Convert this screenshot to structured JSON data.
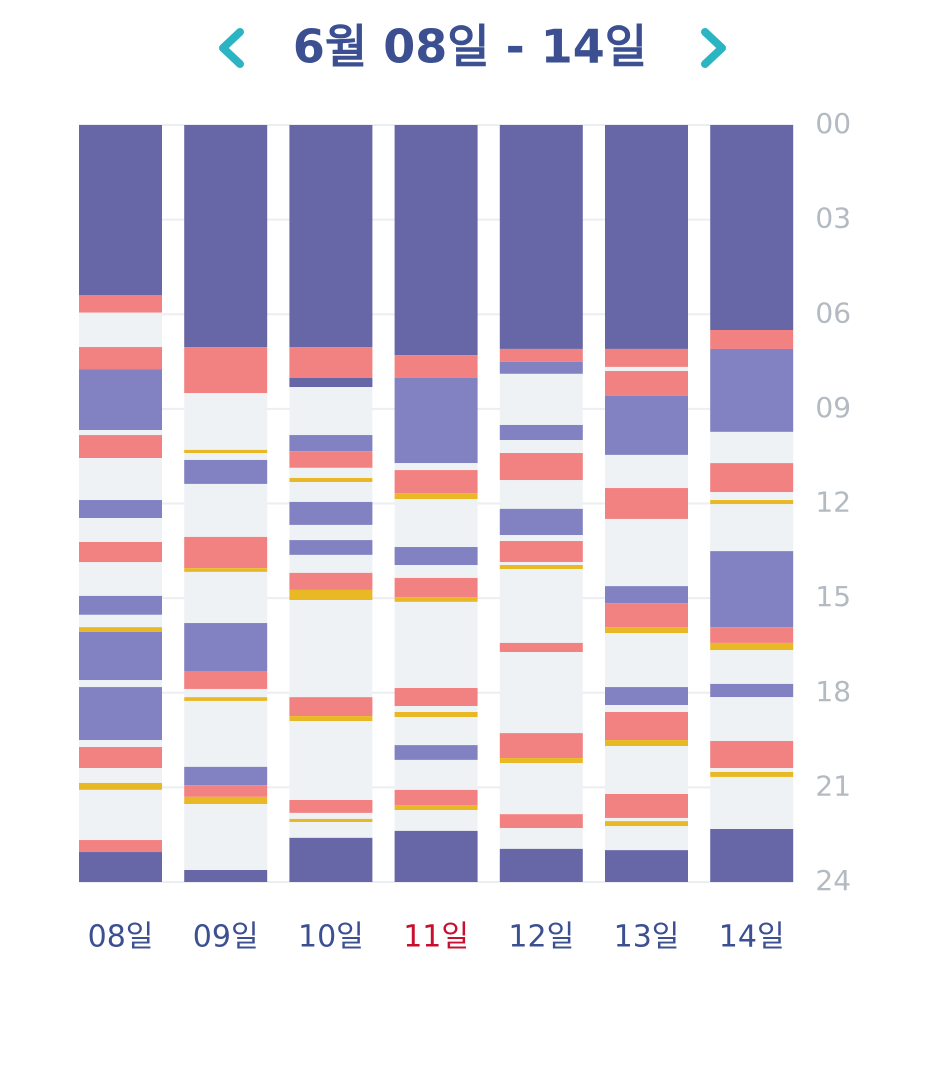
{
  "chart_data": {
    "type": "timeline",
    "title": "6월 08일 - 14일",
    "colors": [
      "#6767a7",
      "#8282c3",
      "#eef2f5",
      "#f28181",
      "#e9b925"
    ],
    "ylim": [
      0,
      24
    ],
    "yticks": [
      {
        "value": 0,
        "label": "00"
      },
      {
        "value": 3,
        "label": "03"
      },
      {
        "value": 6,
        "label": "06"
      },
      {
        "value": 9,
        "label": "09"
      },
      12,
      15,
      18,
      21,
      24
    ],
    "grid": true,
    "days": [
      {
        "label": "08일",
        "label_color": "#3b4f91",
        "bounds": [
          0,
          5.4,
          5.95,
          7.04,
          7.74,
          9.67,
          9.83,
          10.56,
          11.89,
          12.46,
          13.22,
          13.86,
          14.93,
          15.53,
          15.92,
          16.07,
          17.6,
          17.82,
          19.5,
          19.72,
          20.39,
          20.86,
          21.08,
          22.67,
          23.05,
          24
        ],
        "phases": [
          0,
          3,
          2,
          3,
          1,
          2,
          3,
          2,
          1,
          2,
          3,
          2,
          1,
          2,
          4,
          1,
          2,
          1,
          2,
          3,
          2,
          4,
          2,
          3,
          0
        ]
      },
      {
        "label": "09일",
        "label_color": "#3b4f91",
        "bounds": [
          0,
          7.04,
          8.5,
          10.3,
          10.4,
          10.62,
          11.38,
          13.06,
          14.05,
          14.17,
          15.79,
          17.31,
          17.88,
          18.14,
          18.26,
          20.35,
          20.93,
          21.3,
          21.53,
          23.62,
          24
        ],
        "phases": [
          0,
          3,
          2,
          4,
          2,
          1,
          2,
          3,
          4,
          2,
          1,
          3,
          2,
          4,
          2,
          1,
          3,
          4,
          2,
          0
        ]
      },
      {
        "label": "10일",
        "label_color": "#3b4f91",
        "bounds": [
          0,
          7.04,
          8.02,
          8.31,
          9.83,
          10.34,
          10.87,
          11.19,
          11.32,
          11.95,
          12.68,
          13.16,
          13.63,
          14.2,
          14.74,
          15.06,
          18.14,
          18.74,
          18.9,
          21.4,
          21.81,
          22.0,
          22.1,
          22.6,
          24
        ],
        "phases": [
          0,
          3,
          0,
          2,
          1,
          3,
          2,
          4,
          2,
          1,
          2,
          1,
          2,
          3,
          4,
          2,
          3,
          4,
          2,
          3,
          2,
          4,
          2,
          0
        ]
      },
      {
        "label": "11일",
        "label_color": "#c8102e",
        "bounds": [
          0,
          7.3,
          8.02,
          10.72,
          10.94,
          11.67,
          11.86,
          13.38,
          13.95,
          14.36,
          14.97,
          15.12,
          17.85,
          18.42,
          18.61,
          18.77,
          19.66,
          20.13,
          21.08,
          21.56,
          21.72,
          22.38,
          24
        ],
        "phases": [
          0,
          3,
          1,
          2,
          3,
          4,
          2,
          1,
          2,
          3,
          4,
          2,
          3,
          2,
          4,
          2,
          1,
          2,
          3,
          4,
          2,
          0
        ]
      },
      {
        "label": "12일",
        "label_color": "#3b4f91",
        "bounds": [
          0,
          7.1,
          7.51,
          7.89,
          9.51,
          9.99,
          10.4,
          11.26,
          12.17,
          13.0,
          13.19,
          13.86,
          13.95,
          14.08,
          16.42,
          16.71,
          19.28,
          20.07,
          20.23,
          21.85,
          22.29,
          22.95,
          24
        ],
        "phases": [
          0,
          3,
          1,
          2,
          1,
          2,
          3,
          2,
          1,
          2,
          3,
          2,
          4,
          2,
          3,
          2,
          3,
          4,
          2,
          3,
          2,
          0
        ]
      },
      {
        "label": "13일",
        "label_color": "#3b4f91",
        "bounds": [
          0,
          7.1,
          7.67,
          7.8,
          8.59,
          10.46,
          11.51,
          12.49,
          14.62,
          15.16,
          15.92,
          16.11,
          17.82,
          18.39,
          18.61,
          19.5,
          19.69,
          21.21,
          21.97,
          22.07,
          22.23,
          22.99,
          24
        ],
        "phases": [
          0,
          3,
          2,
          3,
          1,
          2,
          3,
          2,
          1,
          3,
          4,
          2,
          1,
          2,
          3,
          4,
          2,
          3,
          2,
          4,
          2,
          0
        ]
      },
      {
        "label": "14일",
        "label_color": "#3b4f91",
        "bounds": [
          0,
          6.5,
          7.1,
          9.73,
          10.72,
          11.64,
          11.89,
          12.02,
          13.51,
          15.92,
          16.42,
          16.65,
          17.72,
          18.14,
          19.53,
          20.39,
          20.51,
          20.67,
          22.32,
          24
        ],
        "phases": [
          0,
          3,
          1,
          2,
          3,
          2,
          4,
          2,
          1,
          3,
          4,
          2,
          1,
          2,
          3,
          2,
          4,
          2,
          0
        ]
      }
    ]
  }
}
